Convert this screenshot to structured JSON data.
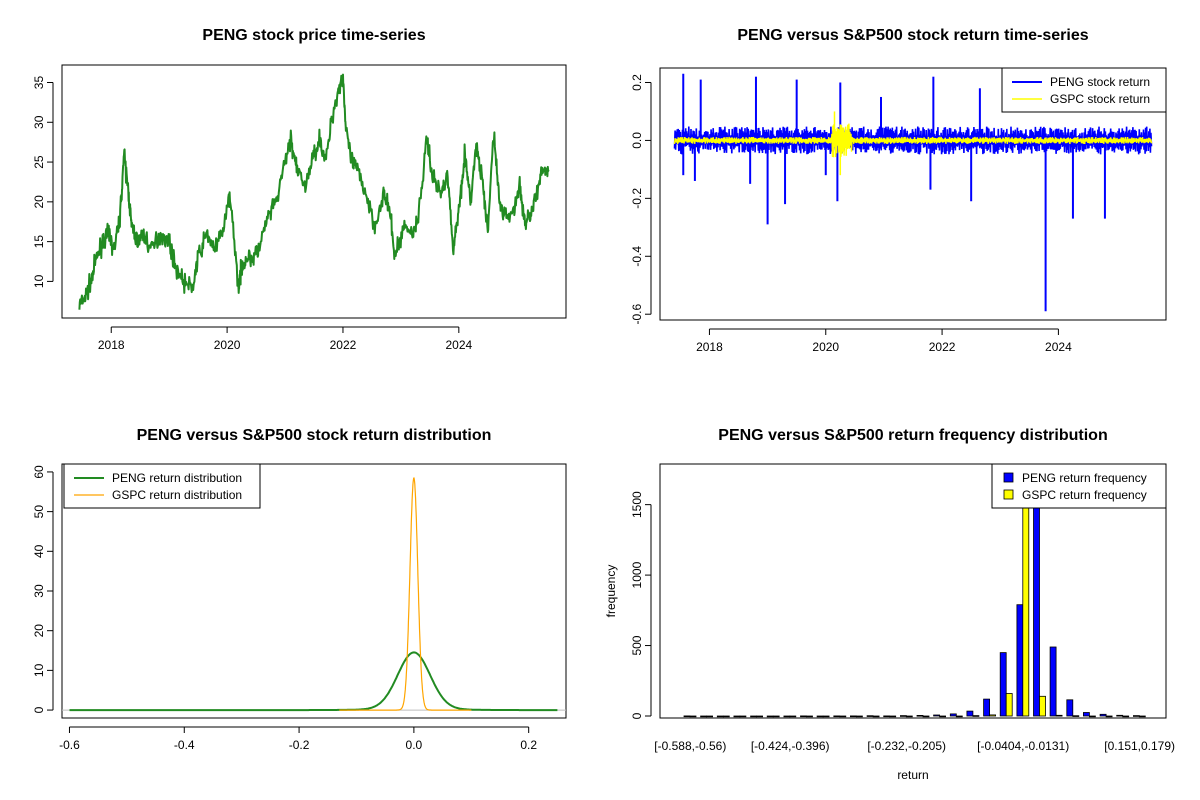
{
  "colors": {
    "price": "#228B22",
    "peng_return": "#0000FF",
    "gspc_return": "#FFFF00",
    "peng_density": "#228B22",
    "gspc_density": "#FFA500",
    "peng_bar": "#0000FF",
    "gspc_bar": "#FFFF00"
  },
  "chart_data": [
    {
      "id": "price",
      "type": "line",
      "title": "PENG stock price time-series",
      "xlabel": "",
      "ylabel": "",
      "xlim": [
        2017.15,
        2025.85
      ],
      "ylim": [
        5.4,
        37.2
      ],
      "xticks": [
        2018,
        2020,
        2022,
        2024
      ],
      "xtick_labels": [
        "2018",
        "2020",
        "2022",
        "2024"
      ],
      "yticks": [
        10,
        15,
        20,
        25,
        30,
        35
      ],
      "ytick_labels": [
        "10",
        "15",
        "20",
        "25",
        "30",
        "35"
      ],
      "series": [
        {
          "name": "PENG",
          "x": [
            2017.45,
            2017.55,
            2017.65,
            2017.75,
            2017.85,
            2017.95,
            2018.05,
            2018.15,
            2018.22,
            2018.3,
            2018.35,
            2018.45,
            2018.55,
            2018.7,
            2018.85,
            2019.0,
            2019.1,
            2019.25,
            2019.4,
            2019.5,
            2019.65,
            2019.8,
            2019.95,
            2020.05,
            2020.2,
            2020.25,
            2020.35,
            2020.45,
            2020.55,
            2020.7,
            2020.85,
            2021.0,
            2021.1,
            2021.2,
            2021.35,
            2021.5,
            2021.6,
            2021.7,
            2021.82,
            2021.92,
            2022.0,
            2022.05,
            2022.15,
            2022.25,
            2022.4,
            2022.55,
            2022.7,
            2022.8,
            2022.9,
            2023.05,
            2023.2,
            2023.3,
            2023.45,
            2023.55,
            2023.7,
            2023.8,
            2023.9,
            2024.0,
            2024.1,
            2024.2,
            2024.3,
            2024.4,
            2024.5,
            2024.6,
            2024.7,
            2024.8,
            2024.95,
            2025.05,
            2025.15,
            2025.25,
            2025.35,
            2025.45,
            2025.55
          ],
          "y": [
            7,
            8,
            10,
            13,
            15,
            16,
            14,
            18,
            26,
            21,
            17,
            15,
            16,
            14,
            16,
            15,
            12,
            10,
            9,
            13,
            16,
            14,
            17,
            21,
            9,
            12,
            13,
            13,
            14,
            18,
            20,
            25,
            28,
            24,
            22,
            26,
            28,
            25,
            31,
            34,
            36,
            29,
            25,
            24,
            21,
            17,
            21,
            19,
            13,
            17,
            16,
            18,
            28,
            23,
            21,
            24,
            14,
            19,
            26,
            20,
            27,
            23,
            16,
            29,
            20,
            18,
            19,
            22,
            17,
            19,
            21,
            24,
            24
          ]
        }
      ]
    },
    {
      "id": "returns",
      "type": "line",
      "title": "PENG versus S&P500 stock return time-series",
      "xlabel": "",
      "ylabel": "",
      "xlim": [
        2017.15,
        2025.85
      ],
      "ylim": [
        -0.62,
        0.25
      ],
      "xticks": [
        2018,
        2020,
        2022,
        2024
      ],
      "xtick_labels": [
        "2018",
        "2020",
        "2022",
        "2024"
      ],
      "yticks": [
        -0.6,
        -0.4,
        -0.2,
        0.0,
        0.2
      ],
      "ytick_labels": [
        "-0.6",
        "-0.4",
        "-0.2",
        "0.0",
        "0.2"
      ],
      "legend": [
        "PENG stock return",
        "GSPC stock return"
      ],
      "legend_position": "top-right",
      "series": [
        {
          "name": "PENG stock return",
          "x_range": [
            2017.4,
            2025.6
          ],
          "typical_amplitude": 0.04,
          "spikes_up": [
            [
              2017.55,
              0.23
            ],
            [
              2017.85,
              0.21
            ],
            [
              2018.8,
              0.22
            ],
            [
              2019.5,
              0.21
            ],
            [
              2020.25,
              0.2
            ],
            [
              2020.95,
              0.15
            ],
            [
              2021.85,
              0.22
            ],
            [
              2022.65,
              0.18
            ]
          ],
          "spikes_down": [
            [
              2017.55,
              -0.12
            ],
            [
              2017.75,
              -0.14
            ],
            [
              2018.7,
              -0.15
            ],
            [
              2019.0,
              -0.29
            ],
            [
              2019.3,
              -0.22
            ],
            [
              2020.0,
              -0.12
            ],
            [
              2020.2,
              -0.21
            ],
            [
              2021.8,
              -0.17
            ],
            [
              2022.5,
              -0.21
            ],
            [
              2023.78,
              -0.59
            ],
            [
              2024.25,
              -0.27
            ],
            [
              2024.8,
              -0.27
            ]
          ]
        },
        {
          "name": "GSPC stock return",
          "x_range": [
            2017.4,
            2025.6
          ],
          "typical_amplitude": 0.01,
          "crisis": [
            [
              2020.15,
              0.1
            ],
            [
              2020.25,
              -0.12
            ]
          ]
        }
      ]
    },
    {
      "id": "density",
      "type": "line",
      "title": "PENG versus S&P500 stock return distribution",
      "xlabel": "",
      "ylabel": "",
      "xlim": [
        -0.613,
        0.265
      ],
      "ylim": [
        -2,
        62
      ],
      "xticks": [
        -0.6,
        -0.4,
        -0.2,
        0.0,
        0.2
      ],
      "xtick_labels": [
        "-0.6",
        "-0.4",
        "-0.2",
        "0.0",
        "0.2"
      ],
      "yticks": [
        0,
        10,
        20,
        30,
        40,
        50,
        60
      ],
      "ytick_labels": [
        "0",
        "10",
        "20",
        "30",
        "40",
        "50",
        "60"
      ],
      "legend": [
        "PENG return distribution",
        "GSPC return distribution"
      ],
      "legend_position": "top-left",
      "series": [
        {
          "name": "PENG return distribution",
          "peak": 14.2,
          "peak_x": 0.0,
          "sd": 0.028,
          "x_range": [
            -0.6,
            0.25
          ]
        },
        {
          "name": "GSPC return distribution",
          "peak": 58.5,
          "peak_x": 0.0,
          "sd": 0.0068,
          "x_range": [
            -0.13,
            0.1
          ]
        }
      ]
    },
    {
      "id": "histogram",
      "type": "bar",
      "title": "PENG versus S&P500 return frequency distribution",
      "xlabel": "return",
      "ylabel": "frequency",
      "ylim": [
        0,
        1600
      ],
      "yticks": [
        0,
        500,
        1000,
        1500
      ],
      "ytick_labels": [
        "0",
        "500",
        "1000",
        "1500"
      ],
      "category_count": 28,
      "xtick_labels": [
        "[-0.588,-0.56)",
        "[-0.424,-0.396)",
        "[-0.232,-0.205)",
        "[-0.0404,-0.0131)",
        "[0.151,0.179)"
      ],
      "xtick_positions": [
        0,
        6,
        13,
        20,
        27
      ],
      "legend": [
        "PENG return frequency",
        "GSPC return frequency"
      ],
      "legend_position": "top-right",
      "series": [
        {
          "name": "PENG return frequency",
          "values": [
            1,
            0,
            0,
            0,
            0,
            0,
            0,
            1,
            0,
            1,
            1,
            2,
            1,
            3,
            4,
            7,
            15,
            35,
            120,
            450,
            790,
            1600,
            490,
            115,
            25,
            12,
            5,
            3
          ]
        },
        {
          "name": "GSPC return frequency",
          "values": [
            0,
            0,
            0,
            0,
            0,
            0,
            0,
            0,
            0,
            0,
            0,
            0,
            0,
            0,
            0,
            0,
            0,
            3,
            8,
            160,
            1600,
            140,
            5,
            2,
            0,
            0,
            0,
            0
          ]
        }
      ]
    }
  ]
}
